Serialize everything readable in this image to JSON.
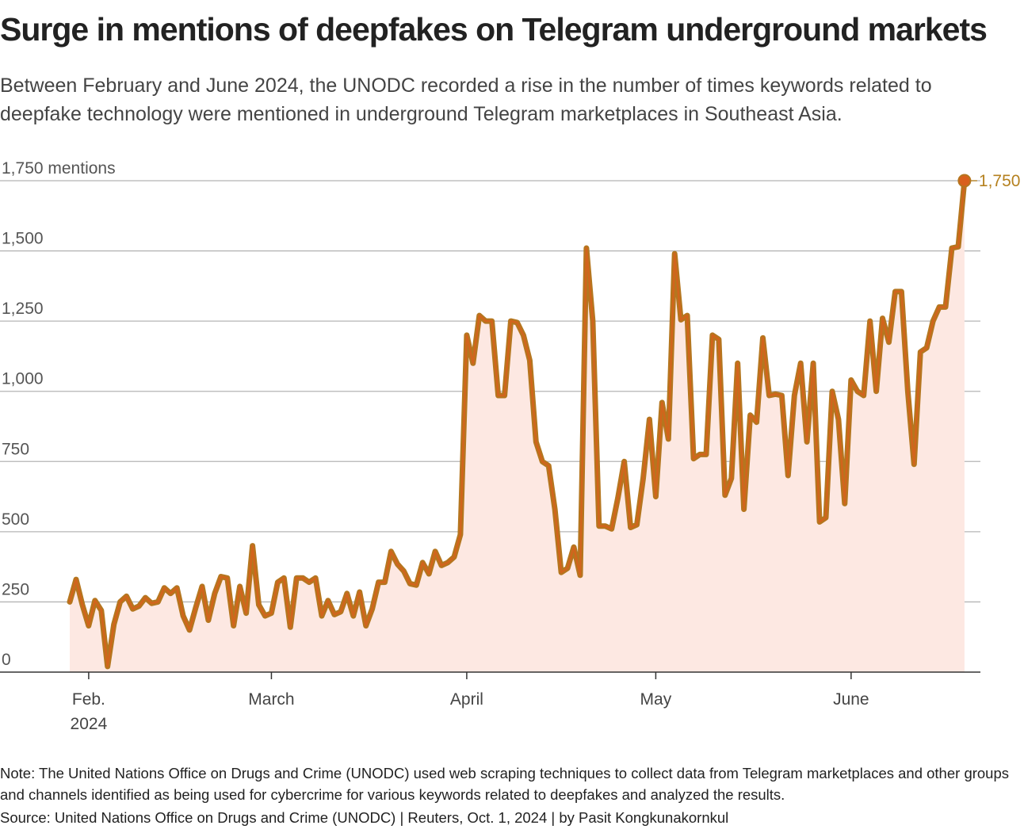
{
  "title": "Surge in mentions of deepfakes on Telegram underground markets",
  "subtitle": "Between February and June 2024, the UNODC recorded a rise in the number of times keywords related to deepfake technology were mentioned in underground Telegram marketplaces in Southeast Asia.",
  "note": "Note: The United Nations Office on Drugs and Crime (UNODC) used web scraping techniques to collect data from Telegram marketplaces and other groups and channels identified as being used for cybercrime for various keywords related to deepfakes and analyzed the results.",
  "source": "Source: United Nations Office on Drugs and Crime (UNODC) | Reuters, Oct. 1, 2024 | by Pasit Kongkunakornkul",
  "colors": {
    "line": "#b5761f",
    "line_inner": "#d9601c",
    "area": "#fde8e2",
    "grid": "#b5b5b5",
    "axis": "#333333",
    "end_label": "#b5811f"
  },
  "chart_data": {
    "type": "area",
    "x_unit": "day",
    "x_start": "2024-01-30",
    "y_axis_labels": [
      "0",
      "250",
      "500",
      "750",
      "1,000",
      "1,250",
      "1,500",
      "1,750 mentions"
    ],
    "y_ticks": [
      0,
      250,
      500,
      750,
      1000,
      1250,
      1500,
      1750
    ],
    "ylim": [
      0,
      1750
    ],
    "grid": true,
    "x_ticks": [
      {
        "date": "2024-02-01",
        "label": "Feb.",
        "sublabel": "2024"
      },
      {
        "date": "2024-03-01",
        "label": "March",
        "sublabel": ""
      },
      {
        "date": "2024-04-01",
        "label": "April",
        "sublabel": ""
      },
      {
        "date": "2024-05-01",
        "label": "May",
        "sublabel": ""
      },
      {
        "date": "2024-06-01",
        "label": "June",
        "sublabel": ""
      }
    ],
    "end_label": "1,750",
    "end_value": 1750,
    "values": [
      250,
      330,
      240,
      165,
      255,
      220,
      20,
      170,
      250,
      270,
      225,
      235,
      265,
      245,
      250,
      300,
      280,
      300,
      200,
      150,
      230,
      305,
      185,
      280,
      340,
      335,
      165,
      305,
      210,
      450,
      240,
      200,
      210,
      320,
      335,
      160,
      335,
      335,
      320,
      335,
      200,
      255,
      205,
      215,
      280,
      200,
      285,
      165,
      225,
      320,
      320,
      430,
      385,
      360,
      315,
      310,
      390,
      350,
      430,
      380,
      390,
      410,
      490,
      1200,
      1100,
      1270,
      1250,
      1250,
      985,
      985,
      1250,
      1245,
      1200,
      1110,
      820,
      750,
      735,
      580,
      355,
      370,
      445,
      345,
      1510,
      1250,
      520,
      520,
      510,
      620,
      750,
      515,
      525,
      690,
      900,
      625,
      960,
      830,
      1490,
      1255,
      1270,
      760,
      775,
      775,
      1200,
      1185,
      630,
      690,
      1100,
      580,
      915,
      890,
      1190,
      985,
      990,
      985,
      700,
      985,
      1100,
      820,
      1100,
      535,
      550,
      1000,
      900,
      600,
      1040,
      1000,
      985,
      1250,
      1000,
      1260,
      1175,
      1355,
      1355,
      1000,
      740,
      1140,
      1155,
      1250,
      1300,
      1300,
      1510,
      1515,
      1750
    ]
  }
}
